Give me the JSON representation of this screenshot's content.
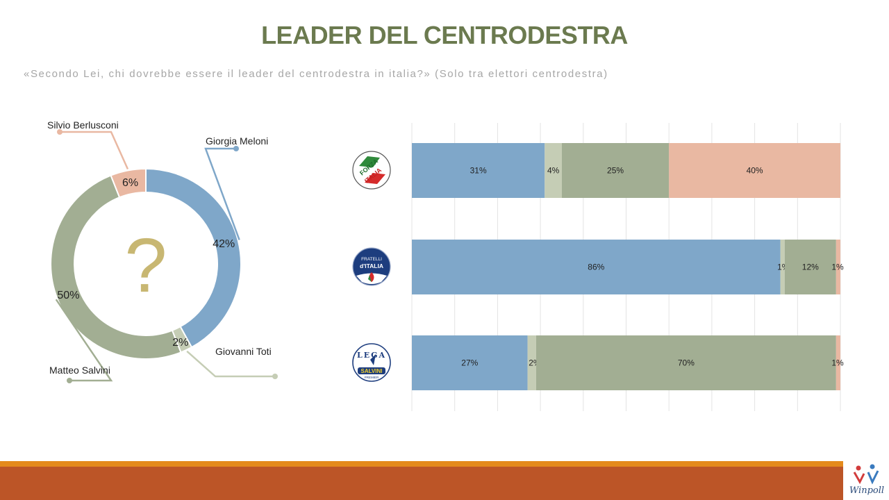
{
  "title": "LEADER DEL CENTRODESTRA",
  "subtitle": "«Secondo Lei, chi dovrebbe essere il leader del centrodestra in italia?» (Solo tra elettori centrodestra)",
  "center_symbol": "?",
  "colors": {
    "Giorgia Meloni": "#7fa7c9",
    "Giovanni Toti": "#c5cdb5",
    "Matteo Salvini": "#a2ae93",
    "Silvio Berlusconi": "#e9b8a2",
    "title": "#6b7a4f",
    "footer_orange": "#e48a1c",
    "footer_rust": "#bc5527"
  },
  "chart_data": [
    {
      "type": "pie",
      "categories": [
        "Giorgia Meloni",
        "Giovanni Toti",
        "Matteo Salvini",
        "Silvio Berlusconi"
      ],
      "values": [
        42,
        2,
        50,
        6
      ],
      "labels": [
        "42%",
        "2%",
        "50%",
        "6%"
      ]
    },
    {
      "type": "bar",
      "orientation": "horizontal",
      "stacked": true,
      "categories": [
        "Forza Italia",
        "Fratelli d'Italia",
        "Lega Salvini Premier"
      ],
      "category_icons": [
        "forza-italia-logo",
        "fratelli-ditalia-logo",
        "lega-salvini-logo"
      ],
      "series": [
        {
          "values": [
            31,
            86,
            27
          ],
          "labels": [
            "31%",
            "86%",
            "27%"
          ]
        },
        {
          "values": [
            4,
            1,
            2
          ],
          "labels": [
            "4%",
            "1%",
            "2%"
          ]
        },
        {
          "values": [
            25,
            12,
            70
          ],
          "labels": [
            "25%",
            "12%",
            "70%"
          ]
        },
        {
          "values": [
            40,
            1,
            1
          ],
          "labels": [
            "40%",
            "1%",
            "1%"
          ]
        }
      ],
      "xlim": [
        0,
        100
      ],
      "grid": true
    }
  ],
  "logos": {
    "forza_italia": [
      "FORZA",
      "ITALIA"
    ],
    "fratelli": [
      "FRATELLI",
      "d'ITALIA"
    ],
    "lega": [
      "LEGA",
      "SALVINI",
      "PREMIER"
    ],
    "brand": "Winpoll"
  }
}
